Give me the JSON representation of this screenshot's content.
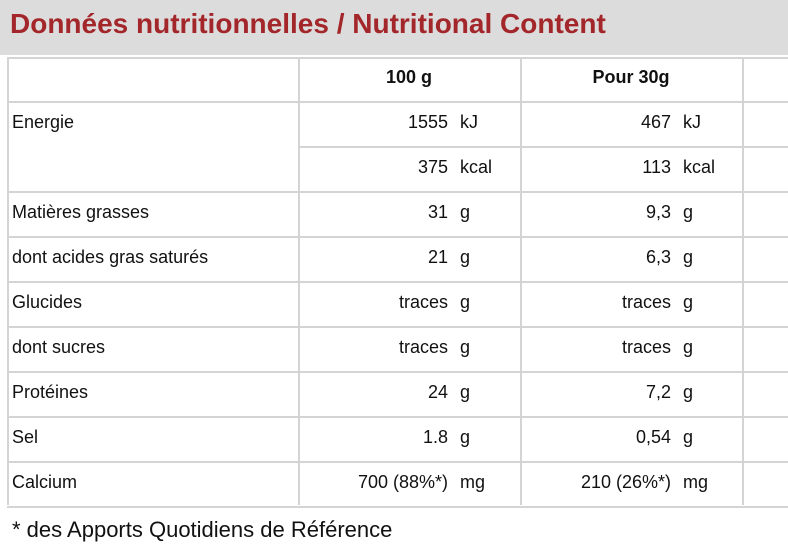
{
  "title": "Données nutritionnelles / Nutritional Content",
  "table": {
    "header": {
      "per_100g": "100 g",
      "per_30g": "Pour 30g"
    },
    "rows": [
      {
        "label": "Energie",
        "per_100g": {
          "value": "1555",
          "unit": "kJ"
        },
        "per_30g": {
          "value": "467",
          "unit": "kJ"
        }
      },
      {
        "per_100g": {
          "value": "375",
          "unit": "kcal"
        },
        "per_30g": {
          "value": "113",
          "unit": "kcal"
        }
      },
      {
        "label": "Matières grasses",
        "per_100g": {
          "value": "31",
          "unit": "g"
        },
        "per_30g": {
          "value": "9,3",
          "unit": "g"
        }
      },
      {
        "label": "dont acides gras saturés",
        "per_100g": {
          "value": "21",
          "unit": "g"
        },
        "per_30g": {
          "value": "6,3",
          "unit": "g"
        }
      },
      {
        "label": "Glucides",
        "per_100g": {
          "value": "traces",
          "unit": "g"
        },
        "per_30g": {
          "value": "traces",
          "unit": "g"
        }
      },
      {
        "label": "dont sucres",
        "per_100g": {
          "value": "traces",
          "unit": "g"
        },
        "per_30g": {
          "value": "traces",
          "unit": "g"
        }
      },
      {
        "label": "Protéines",
        "per_100g": {
          "value": "24",
          "unit": "g"
        },
        "per_30g": {
          "value": "7,2",
          "unit": "g"
        }
      },
      {
        "label": "Sel",
        "per_100g": {
          "value": "1.8",
          "unit": "g"
        },
        "per_30g": {
          "value": "0,54",
          "unit": "g"
        }
      },
      {
        "label": "Calcium",
        "per_100g": {
          "value": "700 (88%*)",
          "unit": "mg"
        },
        "per_30g": {
          "value": "210 (26%*)",
          "unit": "mg"
        }
      }
    ]
  },
  "footnote": "* des Apports Quotidiens de Référence"
}
